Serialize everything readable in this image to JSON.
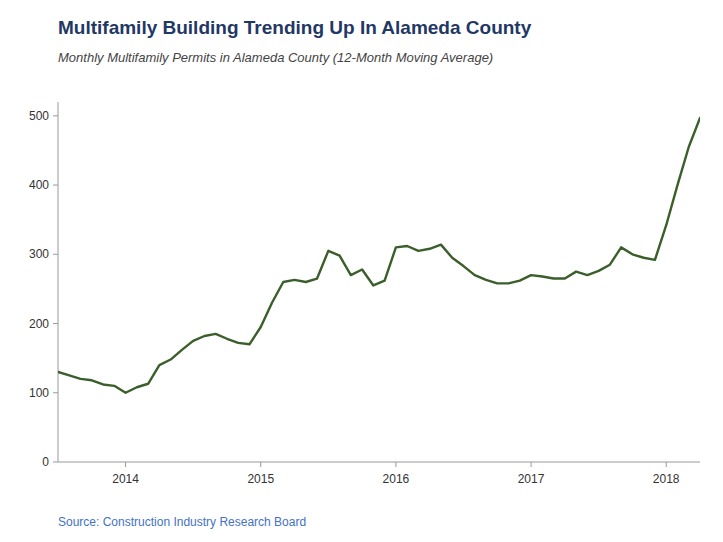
{
  "chart_data": {
    "type": "line",
    "title": "Multifamily Building Trending Up In Alameda County",
    "subtitle": "Monthly Multifamily Permits in Alameda County (12-Month Moving Average)",
    "source": "Source: Construction Industry Research Board",
    "categories": [
      null,
      null,
      null,
      null,
      null,
      null,
      "2014",
      null,
      null,
      null,
      null,
      null,
      null,
      null,
      null,
      null,
      null,
      null,
      "2015",
      null,
      null,
      null,
      null,
      null,
      null,
      null,
      null,
      null,
      null,
      null,
      "2016",
      null,
      null,
      null,
      null,
      null,
      null,
      null,
      null,
      null,
      null,
      null,
      "2017",
      null,
      null,
      null,
      null,
      null,
      null,
      null,
      null,
      null,
      null,
      null,
      "2018",
      null,
      null,
      null
    ],
    "values": [
      130,
      125,
      120,
      118,
      112,
      110,
      100,
      108,
      113,
      140,
      148,
      162,
      175,
      182,
      185,
      178,
      172,
      170,
      195,
      230,
      260,
      263,
      260,
      265,
      305,
      298,
      270,
      278,
      255,
      262,
      310,
      312,
      305,
      308,
      314,
      295,
      283,
      270,
      263,
      258,
      258,
      262,
      270,
      268,
      265,
      265,
      275,
      270,
      276,
      285,
      310,
      300,
      295,
      292,
      342,
      400,
      455,
      497
    ],
    "color": "#3a5f2a",
    "ylim": [
      0,
      520
    ],
    "yticks": [
      0,
      100,
      200,
      300,
      400,
      500
    ],
    "grid": false
  }
}
